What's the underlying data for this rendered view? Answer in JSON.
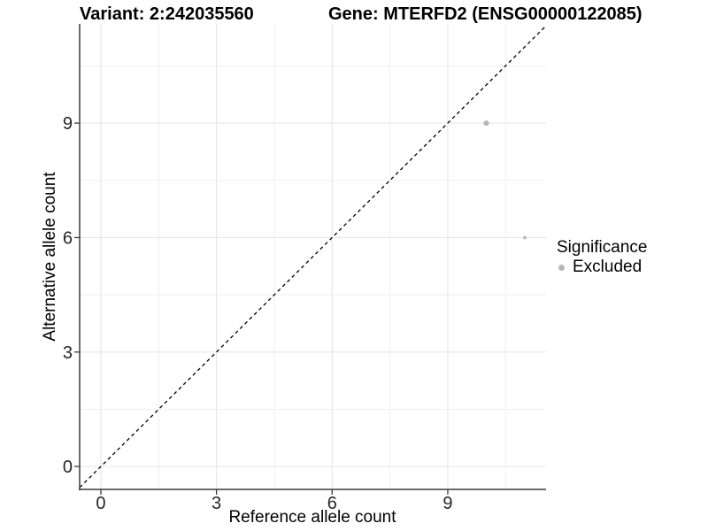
{
  "chart_data": {
    "type": "scatter",
    "titles": {
      "left": "Variant: 2:242035560",
      "right": "Gene: MTERFD2 (ENSG00000122085)"
    },
    "xlabel": "Reference allele count",
    "ylabel": "Alternative allele count",
    "x_ticks": [
      0,
      3,
      6,
      9
    ],
    "y_ticks": [
      0,
      3,
      6,
      9
    ],
    "x_minor_gridlines": [
      1.5,
      4.5,
      7.5,
      10.5
    ],
    "y_minor_gridlines": [
      1.5,
      4.5,
      7.5,
      10.5
    ],
    "xlim": [
      -0.55,
      11.55
    ],
    "ylim": [
      -0.6,
      11.6
    ],
    "grid": true,
    "series": [
      {
        "name": "Excluded",
        "color": "#b5b5b5",
        "points": [
          {
            "x": 10,
            "y": 9,
            "r": 3.0
          },
          {
            "x": 11,
            "y": 6,
            "r": 1.9
          }
        ]
      }
    ],
    "identity_line": {
      "slope": 1,
      "intercept": 0,
      "style": "dashed",
      "color": "#000000"
    },
    "legend": {
      "position": "right",
      "title": "Significance",
      "entries": [
        {
          "label": "Excluded",
          "color": "#b5b5b5"
        }
      ]
    }
  },
  "colors": {
    "background": "#ffffff",
    "axis_line": "#3c3c3c",
    "tick_mark": "#3c3c3c",
    "tick_text": "#262626",
    "grid_major": "#e6e6e6",
    "grid_minor": "#eeeeee",
    "point": "#b5b5b5",
    "dashed_line": "#000000"
  }
}
